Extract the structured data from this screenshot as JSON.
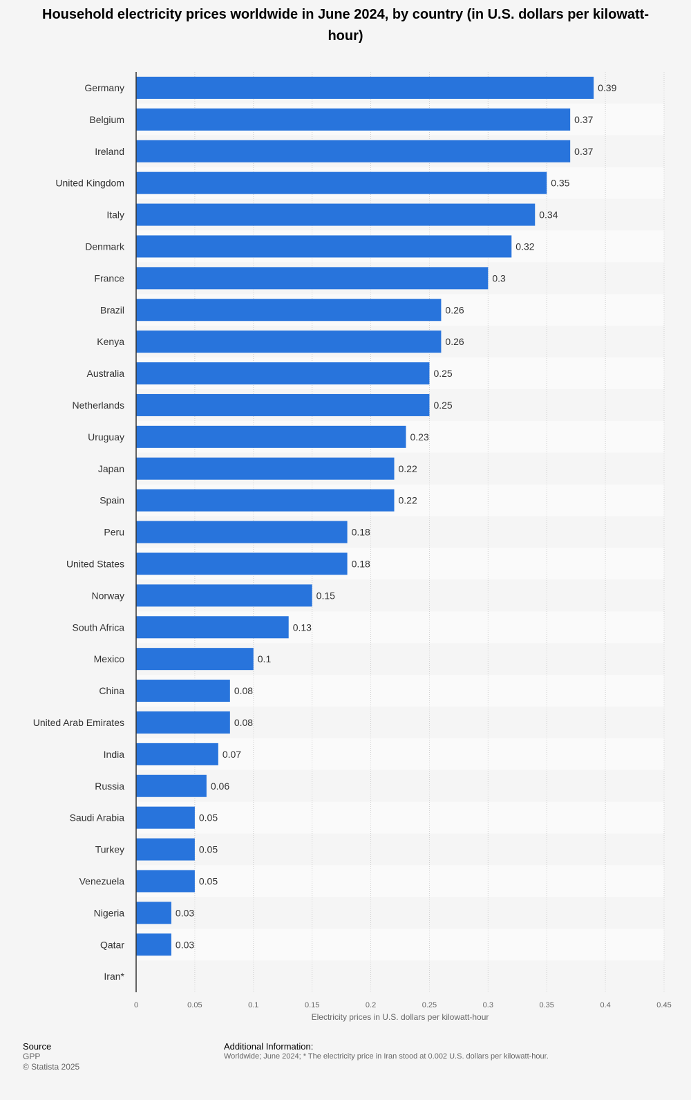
{
  "chart_data": {
    "type": "bar",
    "orientation": "horizontal",
    "title": "Household electricity prices worldwide in June 2024, by country (in U.S. dollars per kilowatt-hour)",
    "xlabel": "Electricity prices in U.S. dollars per kilowatt-hour",
    "ylabel": "",
    "xlim": [
      0,
      0.45
    ],
    "ticks": [
      "0",
      "0.05",
      "0.1",
      "0.15",
      "0.2",
      "0.25",
      "0.3",
      "0.35",
      "0.4",
      "0.45"
    ],
    "tick_values": [
      0,
      0.05,
      0.1,
      0.15,
      0.2,
      0.25,
      0.3,
      0.35,
      0.4,
      0.45
    ],
    "grid": true,
    "bar_color": "#2874dc",
    "categories": [
      "Germany",
      "Belgium",
      "Ireland",
      "United Kingdom",
      "Italy",
      "Denmark",
      "France",
      "Brazil",
      "Kenya",
      "Australia",
      "Netherlands",
      "Uruguay",
      "Japan",
      "Spain",
      "Peru",
      "United States",
      "Norway",
      "South Africa",
      "Mexico",
      "China",
      "United Arab Emirates",
      "India",
      "Russia",
      "Saudi Arabia",
      "Turkey",
      "Venezuela",
      "Nigeria",
      "Qatar",
      "Iran*"
    ],
    "values": [
      0.39,
      0.37,
      0.37,
      0.35,
      0.34,
      0.32,
      0.3,
      0.26,
      0.26,
      0.25,
      0.25,
      0.23,
      0.22,
      0.22,
      0.18,
      0.18,
      0.15,
      0.13,
      0.1,
      0.08,
      0.08,
      0.07,
      0.06,
      0.05,
      0.05,
      0.05,
      0.03,
      0.03,
      null
    ],
    "value_labels": [
      "0.39",
      "0.37",
      "0.37",
      "0.35",
      "0.34",
      "0.32",
      "0.3",
      "0.26",
      "0.26",
      "0.25",
      "0.25",
      "0.23",
      "0.22",
      "0.22",
      "0.18",
      "0.18",
      "0.15",
      "0.13",
      "0.1",
      "0.08",
      "0.08",
      "0.07",
      "0.06",
      "0.05",
      "0.05",
      "0.05",
      "0.03",
      "0.03",
      ""
    ]
  },
  "footer": {
    "source_heading": "Source",
    "source_name": "GPP",
    "copyright": "© Statista 2025",
    "info_heading": "Additional Information:",
    "info_text": "Worldwide; June 2024; * The electricity price in Iran stood at 0.002 U.S. dollars per kilowatt-hour."
  }
}
